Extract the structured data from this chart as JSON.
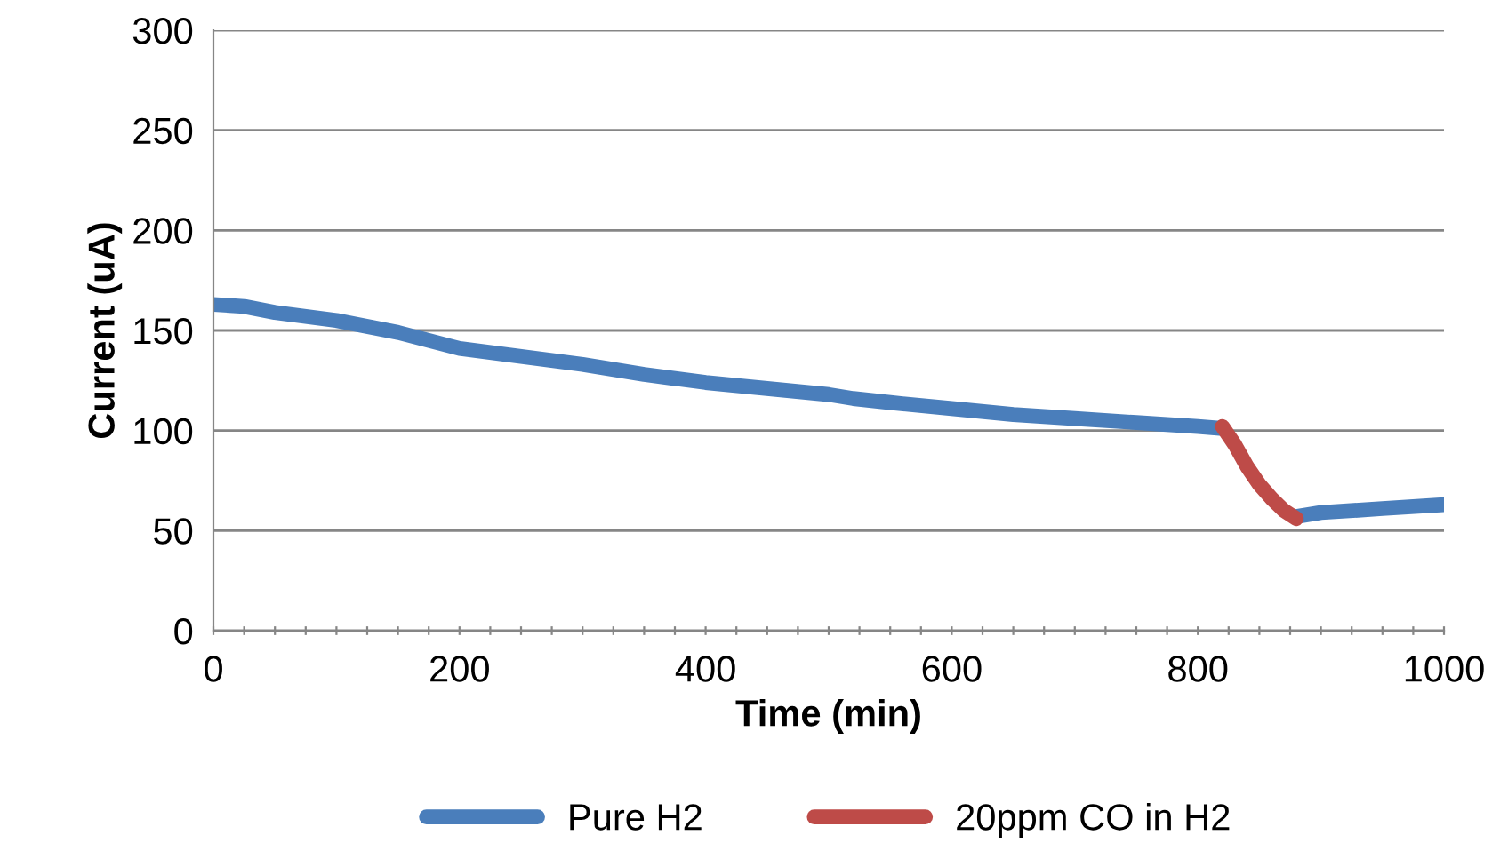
{
  "chart_data": {
    "type": "line",
    "xlabel": "Time (min)",
    "ylabel": "Current (uA)",
    "xlim": [
      0,
      1000
    ],
    "ylim": [
      0,
      300
    ],
    "xticks": [
      0,
      {
        "value": 25,
        "label": null
      },
      {
        "value": 50,
        "label": null
      },
      {
        "value": 75,
        "label": null
      },
      {
        "value": 100,
        "label": null
      },
      {
        "value": 125,
        "label": null
      },
      {
        "value": 150,
        "label": null
      },
      {
        "value": 175,
        "label": null
      },
      200,
      {
        "value": 225,
        "label": null
      },
      {
        "value": 250,
        "label": null
      },
      {
        "value": 275,
        "label": null
      },
      {
        "value": 300,
        "label": null
      },
      {
        "value": 325,
        "label": null
      },
      {
        "value": 350,
        "label": null
      },
      {
        "value": 375,
        "label": null
      },
      400,
      {
        "value": 425,
        "label": null
      },
      {
        "value": 450,
        "label": null
      },
      {
        "value": 475,
        "label": null
      },
      {
        "value": 500,
        "label": null
      },
      {
        "value": 525,
        "label": null
      },
      {
        "value": 550,
        "label": null
      },
      {
        "value": 575,
        "label": null
      },
      600,
      {
        "value": 625,
        "label": null
      },
      {
        "value": 650,
        "label": null
      },
      {
        "value": 675,
        "label": null
      },
      {
        "value": 700,
        "label": null
      },
      {
        "value": 725,
        "label": null
      },
      {
        "value": 750,
        "label": null
      },
      {
        "value": 775,
        "label": null
      },
      800,
      {
        "value": 825,
        "label": null
      },
      {
        "value": 850,
        "label": null
      },
      {
        "value": 875,
        "label": null
      },
      {
        "value": 900,
        "label": null
      },
      {
        "value": 925,
        "label": null
      },
      {
        "value": 950,
        "label": null
      },
      {
        "value": 975,
        "label": null
      },
      1000
    ],
    "yticks": [
      0,
      50,
      100,
      150,
      200,
      250,
      300
    ],
    "grid": "y",
    "legend": "bottom",
    "marker": "none",
    "line_style": "solid",
    "series": [
      {
        "name": "Pure H2",
        "color": "#4a7ebb",
        "x": [
          0,
          25,
          50,
          100,
          150,
          200,
          250,
          300,
          350,
          400,
          450,
          500,
          520,
          550,
          600,
          650,
          700,
          750,
          800,
          820,
          850,
          880,
          900,
          950,
          1000
        ],
        "values": [
          163,
          162,
          159,
          155,
          149,
          141,
          137,
          133,
          128,
          124,
          121,
          118,
          116,
          114,
          111,
          108,
          106,
          104,
          102,
          101,
          null,
          57,
          59,
          61,
          63
        ]
      },
      {
        "name": "20ppm CO in H2",
        "color": "#be4b48",
        "x": [
          820,
          830,
          840,
          850,
          860,
          870,
          880
        ],
        "values": [
          102,
          93,
          82,
          73,
          66,
          60,
          56
        ]
      }
    ]
  }
}
